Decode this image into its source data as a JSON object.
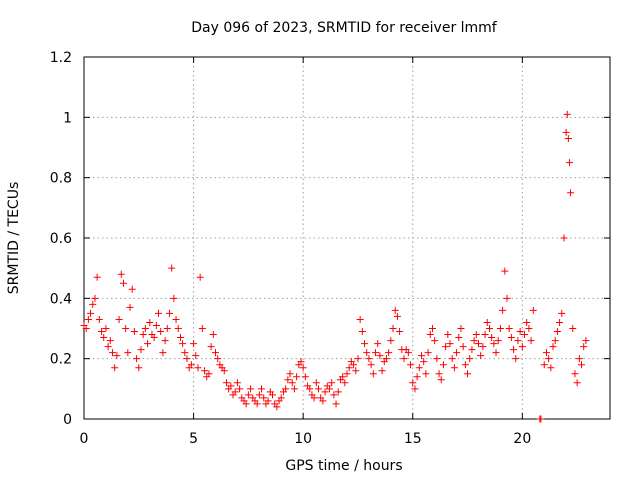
{
  "chart_data": {
    "type": "scatter",
    "title": "Day 096 of 2023, SRMTID for receiver lmmf",
    "xlabel": "GPS time / hours",
    "ylabel": "SRMTID / TECUs",
    "xlim": [
      0,
      24
    ],
    "ylim": [
      0,
      1.2
    ],
    "x_ticks": [
      0,
      5,
      10,
      15,
      20
    ],
    "y_ticks": [
      0,
      0.2,
      0.4,
      0.6,
      0.8,
      1,
      1.2
    ],
    "x_tick_labels": [
      "0",
      "5",
      "10",
      "15",
      "20"
    ],
    "y_tick_labels": [
      "0",
      "0.2",
      "0.4",
      "0.6",
      "0.8",
      "1",
      "1.2"
    ],
    "grid": true,
    "marker": "+",
    "color": "#ff0000",
    "series": [
      {
        "name": "SRMTID",
        "points": [
          [
            0.0,
            0.31
          ],
          [
            0.1,
            0.3
          ],
          [
            0.2,
            0.33
          ],
          [
            0.3,
            0.35
          ],
          [
            0.4,
            0.38
          ],
          [
            0.5,
            0.4
          ],
          [
            0.6,
            0.47
          ],
          [
            0.7,
            0.33
          ],
          [
            0.8,
            0.29
          ],
          [
            0.9,
            0.27
          ],
          [
            1.0,
            0.3
          ],
          [
            1.1,
            0.24
          ],
          [
            1.2,
            0.26
          ],
          [
            1.3,
            0.22
          ],
          [
            1.4,
            0.17
          ],
          [
            1.5,
            0.21
          ],
          [
            1.6,
            0.33
          ],
          [
            1.7,
            0.48
          ],
          [
            1.8,
            0.45
          ],
          [
            1.9,
            0.3
          ],
          [
            2.0,
            0.22
          ],
          [
            2.1,
            0.37
          ],
          [
            2.2,
            0.43
          ],
          [
            2.3,
            0.29
          ],
          [
            2.4,
            0.2
          ],
          [
            2.5,
            0.17
          ],
          [
            2.6,
            0.23
          ],
          [
            2.7,
            0.28
          ],
          [
            2.8,
            0.3
          ],
          [
            2.9,
            0.25
          ],
          [
            3.0,
            0.32
          ],
          [
            3.1,
            0.28
          ],
          [
            3.2,
            0.27
          ],
          [
            3.3,
            0.31
          ],
          [
            3.4,
            0.35
          ],
          [
            3.5,
            0.29
          ],
          [
            3.6,
            0.22
          ],
          [
            3.7,
            0.26
          ],
          [
            3.8,
            0.3
          ],
          [
            3.9,
            0.35
          ],
          [
            4.0,
            0.5
          ],
          [
            4.1,
            0.4
          ],
          [
            4.2,
            0.33
          ],
          [
            4.3,
            0.3
          ],
          [
            4.4,
            0.27
          ],
          [
            4.5,
            0.25
          ],
          [
            4.6,
            0.22
          ],
          [
            4.7,
            0.2
          ],
          [
            4.8,
            0.17
          ],
          [
            4.9,
            0.18
          ],
          [
            5.0,
            0.25
          ],
          [
            5.1,
            0.21
          ],
          [
            5.2,
            0.17
          ],
          [
            5.3,
            0.47
          ],
          [
            5.4,
            0.3
          ],
          [
            5.5,
            0.16
          ],
          [
            5.6,
            0.14
          ],
          [
            5.7,
            0.15
          ],
          [
            5.8,
            0.24
          ],
          [
            5.9,
            0.28
          ],
          [
            6.0,
            0.22
          ],
          [
            6.1,
            0.2
          ],
          [
            6.2,
            0.18
          ],
          [
            6.3,
            0.17
          ],
          [
            6.4,
            0.16
          ],
          [
            6.5,
            0.12
          ],
          [
            6.6,
            0.1
          ],
          [
            6.7,
            0.11
          ],
          [
            6.8,
            0.08
          ],
          [
            6.9,
            0.09
          ],
          [
            7.0,
            0.12
          ],
          [
            7.1,
            0.1
          ],
          [
            7.2,
            0.07
          ],
          [
            7.3,
            0.06
          ],
          [
            7.4,
            0.05
          ],
          [
            7.5,
            0.08
          ],
          [
            7.6,
            0.1
          ],
          [
            7.7,
            0.07
          ],
          [
            7.8,
            0.06
          ],
          [
            7.9,
            0.05
          ],
          [
            8.0,
            0.08
          ],
          [
            8.1,
            0.1
          ],
          [
            8.2,
            0.07
          ],
          [
            8.3,
            0.05
          ],
          [
            8.4,
            0.06
          ],
          [
            8.5,
            0.09
          ],
          [
            8.6,
            0.08
          ],
          [
            8.7,
            0.05
          ],
          [
            8.8,
            0.04
          ],
          [
            8.9,
            0.06
          ],
          [
            9.0,
            0.07
          ],
          [
            9.1,
            0.09
          ],
          [
            9.2,
            0.1
          ],
          [
            9.3,
            0.13
          ],
          [
            9.4,
            0.15
          ],
          [
            9.5,
            0.12
          ],
          [
            9.6,
            0.1
          ],
          [
            9.7,
            0.14
          ],
          [
            9.8,
            0.18
          ],
          [
            9.9,
            0.19
          ],
          [
            10.0,
            0.17
          ],
          [
            10.1,
            0.14
          ],
          [
            10.2,
            0.11
          ],
          [
            10.3,
            0.1
          ],
          [
            10.4,
            0.08
          ],
          [
            10.5,
            0.07
          ],
          [
            10.6,
            0.12
          ],
          [
            10.7,
            0.1
          ],
          [
            10.8,
            0.07
          ],
          [
            10.9,
            0.06
          ],
          [
            11.0,
            0.09
          ],
          [
            11.1,
            0.11
          ],
          [
            11.2,
            0.1
          ],
          [
            11.3,
            0.12
          ],
          [
            11.4,
            0.08
          ],
          [
            11.5,
            0.05
          ],
          [
            11.6,
            0.09
          ],
          [
            11.7,
            0.13
          ],
          [
            11.8,
            0.14
          ],
          [
            11.9,
            0.12
          ],
          [
            12.0,
            0.15
          ],
          [
            12.1,
            0.17
          ],
          [
            12.2,
            0.19
          ],
          [
            12.3,
            0.18
          ],
          [
            12.4,
            0.16
          ],
          [
            12.5,
            0.2
          ],
          [
            12.6,
            0.33
          ],
          [
            12.7,
            0.29
          ],
          [
            12.8,
            0.25
          ],
          [
            12.9,
            0.22
          ],
          [
            13.0,
            0.2
          ],
          [
            13.1,
            0.18
          ],
          [
            13.2,
            0.15
          ],
          [
            13.3,
            0.22
          ],
          [
            13.4,
            0.25
          ],
          [
            13.5,
            0.21
          ],
          [
            13.6,
            0.16
          ],
          [
            13.7,
            0.19
          ],
          [
            13.8,
            0.2
          ],
          [
            13.9,
            0.22
          ],
          [
            14.0,
            0.26
          ],
          [
            14.1,
            0.3
          ],
          [
            14.2,
            0.36
          ],
          [
            14.3,
            0.34
          ],
          [
            14.4,
            0.29
          ],
          [
            14.5,
            0.23
          ],
          [
            14.6,
            0.2
          ],
          [
            14.7,
            0.23
          ],
          [
            14.8,
            0.22
          ],
          [
            14.9,
            0.18
          ],
          [
            15.0,
            0.12
          ],
          [
            15.1,
            0.1
          ],
          [
            15.2,
            0.14
          ],
          [
            15.3,
            0.17
          ],
          [
            15.4,
            0.21
          ],
          [
            15.5,
            0.19
          ],
          [
            15.6,
            0.15
          ],
          [
            15.7,
            0.22
          ],
          [
            15.8,
            0.28
          ],
          [
            15.9,
            0.3
          ],
          [
            16.0,
            0.26
          ],
          [
            16.1,
            0.2
          ],
          [
            16.2,
            0.15
          ],
          [
            16.3,
            0.13
          ],
          [
            16.4,
            0.18
          ],
          [
            16.5,
            0.24
          ],
          [
            16.6,
            0.28
          ],
          [
            16.7,
            0.25
          ],
          [
            16.8,
            0.2
          ],
          [
            16.9,
            0.17
          ],
          [
            17.0,
            0.22
          ],
          [
            17.1,
            0.27
          ],
          [
            17.2,
            0.3
          ],
          [
            17.3,
            0.24
          ],
          [
            17.4,
            0.18
          ],
          [
            17.5,
            0.15
          ],
          [
            17.6,
            0.2
          ],
          [
            17.7,
            0.23
          ],
          [
            17.8,
            0.26
          ],
          [
            17.9,
            0.28
          ],
          [
            18.0,
            0.25
          ],
          [
            18.1,
            0.21
          ],
          [
            18.2,
            0.24
          ],
          [
            18.3,
            0.28
          ],
          [
            18.4,
            0.32
          ],
          [
            18.5,
            0.3
          ],
          [
            18.6,
            0.27
          ],
          [
            18.7,
            0.25
          ],
          [
            18.8,
            0.22
          ],
          [
            18.9,
            0.26
          ],
          [
            19.0,
            0.3
          ],
          [
            19.1,
            0.36
          ],
          [
            19.2,
            0.49
          ],
          [
            19.3,
            0.4
          ],
          [
            19.4,
            0.3
          ],
          [
            19.5,
            0.27
          ],
          [
            19.6,
            0.23
          ],
          [
            19.7,
            0.2
          ],
          [
            19.8,
            0.26
          ],
          [
            19.9,
            0.29
          ],
          [
            20.0,
            0.24
          ],
          [
            20.1,
            0.28
          ],
          [
            20.2,
            0.32
          ],
          [
            20.3,
            0.3
          ],
          [
            20.4,
            0.26
          ],
          [
            20.5,
            0.36
          ],
          [
            20.8,
            0.0
          ],
          [
            20.85,
            0.0
          ],
          [
            21.0,
            0.18
          ],
          [
            21.1,
            0.22
          ],
          [
            21.2,
            0.2
          ],
          [
            21.3,
            0.17
          ],
          [
            21.4,
            0.24
          ],
          [
            21.5,
            0.26
          ],
          [
            21.6,
            0.29
          ],
          [
            21.7,
            0.32
          ],
          [
            21.8,
            0.35
          ],
          [
            21.9,
            0.6
          ],
          [
            22.0,
            0.95
          ],
          [
            22.05,
            1.01
          ],
          [
            22.1,
            0.93
          ],
          [
            22.15,
            0.85
          ],
          [
            22.2,
            0.75
          ],
          [
            22.3,
            0.3
          ],
          [
            22.4,
            0.15
          ],
          [
            22.5,
            0.12
          ],
          [
            22.6,
            0.2
          ],
          [
            22.7,
            0.18
          ],
          [
            22.8,
            0.24
          ],
          [
            22.9,
            0.26
          ]
        ]
      }
    ]
  }
}
